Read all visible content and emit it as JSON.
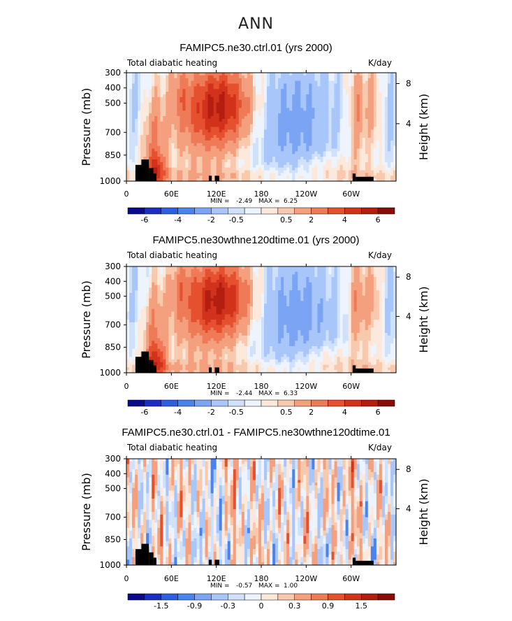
{
  "figure_title": "ANN",
  "chart_data": [
    {
      "type": "heatmap",
      "title": "FAMIPC5.ne30.ctrl.01 (yrs 2000)",
      "left_title": "Total diabatic heating",
      "units": "K/day",
      "ylabel": "Pressure (mb)",
      "y2label": "Height (km)",
      "yticks": [
        "300",
        "400",
        "500",
        "700",
        "850",
        "1000"
      ],
      "y2ticks": [
        "8",
        "4"
      ],
      "xticks": [
        "0",
        "60E",
        "120E",
        "180",
        "120W",
        "60W"
      ],
      "min_label": "MIN =",
      "min_value": "-2.49",
      "max_label": "MAX =",
      "max_value": "6.25",
      "levels": [
        "-6",
        "-4",
        "-2",
        "-0.5",
        "0.5",
        "2",
        "4",
        "6"
      ],
      "colors": [
        "#0a0a8c",
        "#1a2ec6",
        "#2f5fe0",
        "#4a82ee",
        "#7ba4f4",
        "#a8c6fa",
        "#cfe1fb",
        "#eef4fd",
        "#fce9dc",
        "#f8c9ad",
        "#f4a07e",
        "#ee7a58",
        "#e5512f",
        "#d2321c",
        "#b31e11",
        "#8a0c08"
      ],
      "max_intensity": 6.25,
      "min_intensity": -2.49
    },
    {
      "type": "heatmap",
      "title": "FAMIPC5.ne30wthne120dtime.01 (yrs 2000)",
      "left_title": "Total diabatic heating",
      "units": "K/day",
      "ylabel": "Pressure (mb)",
      "y2label": "Height (km)",
      "yticks": [
        "300",
        "400",
        "500",
        "700",
        "850",
        "1000"
      ],
      "y2ticks": [
        "8",
        "4"
      ],
      "xticks": [
        "0",
        "60E",
        "120E",
        "180",
        "120W",
        "60W"
      ],
      "min_label": "MIN =",
      "min_value": "-2.44",
      "max_label": "MAX =",
      "max_value": "6.33",
      "levels": [
        "-6",
        "-4",
        "-2",
        "-0.5",
        "0.5",
        "2",
        "4",
        "6"
      ],
      "colors": [
        "#0a0a8c",
        "#1a2ec6",
        "#2f5fe0",
        "#4a82ee",
        "#7ba4f4",
        "#a8c6fa",
        "#cfe1fb",
        "#eef4fd",
        "#fce9dc",
        "#f8c9ad",
        "#f4a07e",
        "#ee7a58",
        "#e5512f",
        "#d2321c",
        "#b31e11",
        "#8a0c08"
      ],
      "max_intensity": 6.33,
      "min_intensity": -2.44
    },
    {
      "type": "heatmap",
      "title": "FAMIPC5.ne30.ctrl.01 - FAMIPC5.ne30wthne120dtime.01",
      "left_title": "Total diabatic heating",
      "units": "K/day",
      "ylabel": "Pressure (mb)",
      "y2label": "Height (km)",
      "yticks": [
        "300",
        "400",
        "500",
        "700",
        "850",
        "1000"
      ],
      "y2ticks": [
        "8",
        "4"
      ],
      "xticks": [
        "0",
        "60E",
        "120E",
        "180",
        "120W",
        "60W"
      ],
      "min_label": "MIN =",
      "min_value": "-0.57",
      "max_label": "MAX =",
      "max_value": "1.00",
      "levels": [
        "-1.5",
        "-0.9",
        "-0.3",
        "0",
        "0.3",
        "0.9",
        "1.5"
      ],
      "colors": [
        "#0a0a8c",
        "#1a2ec6",
        "#2f5fe0",
        "#4a82ee",
        "#7ba4f4",
        "#a8c6fa",
        "#cfe1fb",
        "#eef4fd",
        "#fce9dc",
        "#f8c9ad",
        "#f4a07e",
        "#ee7a58",
        "#e5512f",
        "#d2321c",
        "#b31e11",
        "#8a0c08"
      ],
      "max_intensity": 1.0,
      "min_intensity": -0.57
    }
  ]
}
